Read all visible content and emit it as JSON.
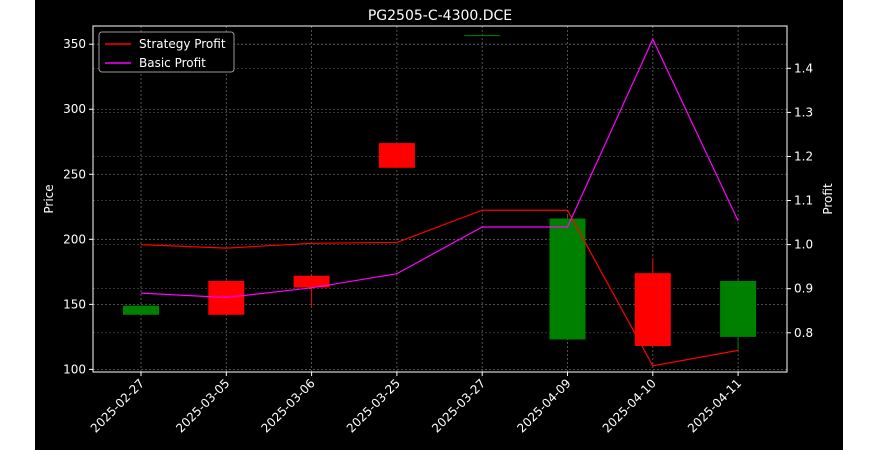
{
  "chart_data": {
    "type": "candlestick",
    "title": "PG2505-C-4300.DCE",
    "ylabel_left": "Price",
    "ylabel_right": "Profit",
    "categories": [
      "2025-02-27",
      "2025-03-05",
      "2025-03-06",
      "2025-03-25",
      "2025-03-27",
      "2025-04-09",
      "2025-04-10",
      "2025-04-11"
    ],
    "ylim_left": [
      98,
      364
    ],
    "ylim_right": [
      0.711,
      1.496
    ],
    "yticks_left": [
      100,
      150,
      200,
      250,
      300,
      350
    ],
    "yticks_right": [
      0.8,
      0.9,
      1.0,
      1.1,
      1.2,
      1.3,
      1.4
    ],
    "grid": true,
    "legend_position": "top-left",
    "candles": [
      {
        "date": "2025-02-27",
        "open": 142,
        "high": 149,
        "low": 142,
        "close": 149
      },
      {
        "date": "2025-03-05",
        "open": 168,
        "high": 169,
        "low": 142,
        "close": 142
      },
      {
        "date": "2025-03-06",
        "open": 172,
        "high": 172,
        "low": 148,
        "close": 163
      },
      {
        "date": "2025-03-25",
        "open": 274,
        "high": 274,
        "low": 255,
        "close": 255
      },
      {
        "date": "2025-03-27",
        "open": 357,
        "high": 357,
        "low": 357,
        "close": 357
      },
      {
        "date": "2025-04-09",
        "open": 123,
        "high": 218,
        "low": 123,
        "close": 216
      },
      {
        "date": "2025-04-10",
        "open": 174,
        "high": 185,
        "low": 118,
        "close": 118
      },
      {
        "date": "2025-04-11",
        "open": 125,
        "high": 169,
        "low": 113,
        "close": 168
      }
    ],
    "series": [
      {
        "name": "Strategy Profit",
        "color": "#ff0000",
        "axis": "right",
        "values": [
          1.0,
          0.992,
          1.003,
          1.005,
          1.078,
          1.078,
          0.725,
          0.76
        ]
      },
      {
        "name": "Basic Profit",
        "color": "#ff00ff",
        "axis": "right",
        "values": [
          0.89,
          0.88,
          0.902,
          0.934,
          1.04,
          1.04,
          1.466,
          1.054
        ]
      }
    ],
    "up_color": "#008000",
    "down_color": "#ff0000"
  }
}
